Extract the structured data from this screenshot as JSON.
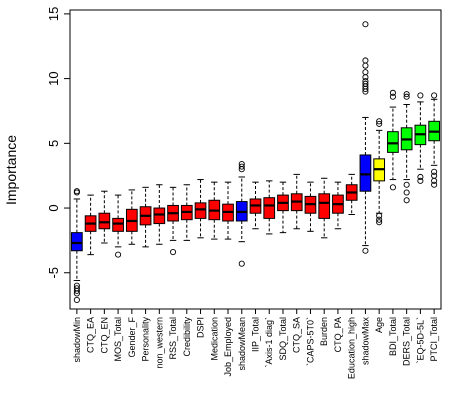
{
  "chart_data": {
    "type": "boxplot",
    "title": "",
    "xlabel": "",
    "ylabel": "Importance",
    "ylim": [
      -7.8,
      15.3
    ],
    "yticks": [
      -5,
      0,
      5,
      10,
      15
    ],
    "grid": false,
    "legend": "none",
    "colors": {
      "shadow": "#0000ff",
      "rejected": "#ff0000",
      "tentative": "#ffff00",
      "confirmed": "#00ff00",
      "axis": "#000000"
    },
    "variables": [
      {
        "label": "shadowMin",
        "group": "shadow",
        "whisker_low": -5.6,
        "q1": -3.3,
        "median": -2.7,
        "q3": -1.9,
        "whisker_high": 0.7,
        "outliers": [
          1.2,
          1.3,
          -6.0,
          -6.2,
          -6.4,
          -6.6,
          -7.1
        ]
      },
      {
        "label": "CTQ_EA",
        "group": "rejected",
        "whisker_low": -3.6,
        "q1": -1.8,
        "median": -1.2,
        "q3": -0.6,
        "whisker_high": 1.0,
        "outliers": []
      },
      {
        "label": "CTQ_EN",
        "group": "rejected",
        "whisker_low": -2.7,
        "q1": -1.6,
        "median": -1.1,
        "q3": -0.4,
        "whisker_high": 1.3,
        "outliers": []
      },
      {
        "label": "MOS_Total",
        "group": "rejected",
        "whisker_low": -3.0,
        "q1": -1.8,
        "median": -1.2,
        "q3": -0.8,
        "whisker_high": 1.0,
        "outliers": [
          -3.6
        ]
      },
      {
        "label": "Gender_F",
        "group": "rejected",
        "whisker_low": -2.8,
        "q1": -1.8,
        "median": -1.0,
        "q3": -0.1,
        "whisker_high": 1.4,
        "outliers": []
      },
      {
        "label": "Personality",
        "group": "rejected",
        "whisker_low": -3.0,
        "q1": -1.3,
        "median": -0.6,
        "q3": 0.1,
        "whisker_high": 1.6,
        "outliers": []
      },
      {
        "label": "non_western",
        "group": "rejected",
        "whisker_low": -2.8,
        "q1": -1.2,
        "median": -0.5,
        "q3": 0.0,
        "whisker_high": 1.8,
        "outliers": []
      },
      {
        "label": "RSS_Total",
        "group": "rejected",
        "whisker_low": -2.5,
        "q1": -1.0,
        "median": -0.4,
        "q3": 0.2,
        "whisker_high": 1.6,
        "outliers": [
          -3.4
        ]
      },
      {
        "label": "Credibility",
        "group": "rejected",
        "whisker_low": -2.5,
        "q1": -0.9,
        "median": -0.3,
        "q3": 0.2,
        "whisker_high": 1.8,
        "outliers": []
      },
      {
        "label": "DSPI",
        "group": "rejected",
        "whisker_low": -2.3,
        "q1": -0.8,
        "median": -0.1,
        "q3": 0.4,
        "whisker_high": 2.2,
        "outliers": []
      },
      {
        "label": "Medication",
        "group": "rejected",
        "whisker_low": -2.4,
        "q1": -0.9,
        "median": -0.2,
        "q3": 0.6,
        "whisker_high": 2.0,
        "outliers": []
      },
      {
        "label": "Job_Employed",
        "group": "rejected",
        "whisker_low": -2.4,
        "q1": -1.0,
        "median": -0.3,
        "q3": 0.3,
        "whisker_high": 2.0,
        "outliers": []
      },
      {
        "label": "shadowMean",
        "group": "shadow",
        "whisker_low": -2.6,
        "q1": -1.0,
        "median": -0.3,
        "q3": 0.5,
        "whisker_high": 2.4,
        "outliers": [
          3.0,
          3.2,
          3.4,
          -4.3
        ]
      },
      {
        "label": "IIP_Total",
        "group": "rejected",
        "whisker_low": -1.6,
        "q1": -0.4,
        "median": 0.2,
        "q3": 0.7,
        "whisker_high": 2.0,
        "outliers": []
      },
      {
        "label": "`Axis-1 diag`",
        "group": "rejected",
        "whisker_low": -2.0,
        "q1": -0.8,
        "median": 0.2,
        "q3": 0.8,
        "whisker_high": 2.1,
        "outliers": []
      },
      {
        "label": "SDQ_Total",
        "group": "rejected",
        "whisker_low": -1.9,
        "q1": -0.2,
        "median": 0.4,
        "q3": 1.0,
        "whisker_high": 2.0,
        "outliers": []
      },
      {
        "label": "CTQ_SA",
        "group": "rejected",
        "whisker_low": -1.6,
        "q1": -0.2,
        "median": 0.5,
        "q3": 1.1,
        "whisker_high": 2.6,
        "outliers": []
      },
      {
        "label": "`CAPS-5T0`",
        "group": "rejected",
        "whisker_low": -1.8,
        "q1": -0.4,
        "median": 0.3,
        "q3": 0.9,
        "whisker_high": 2.0,
        "outliers": []
      },
      {
        "label": "Burden",
        "group": "rejected",
        "whisker_low": -2.3,
        "q1": -0.8,
        "median": 0.4,
        "q3": 1.1,
        "whisker_high": 2.3,
        "outliers": []
      },
      {
        "label": "CTQ_PA",
        "group": "rejected",
        "whisker_low": -1.6,
        "q1": -0.4,
        "median": 0.3,
        "q3": 1.0,
        "whisker_high": 2.0,
        "outliers": []
      },
      {
        "label": "Education_high",
        "group": "rejected",
        "whisker_low": -0.5,
        "q1": 0.6,
        "median": 1.2,
        "q3": 1.8,
        "whisker_high": 2.6,
        "outliers": []
      },
      {
        "label": "shadowMax",
        "group": "shadow",
        "whisker_low": -2.9,
        "q1": 1.3,
        "median": 2.6,
        "q3": 4.1,
        "whisker_high": 7.0,
        "outliers": [
          9.0,
          9.2,
          9.4,
          9.6,
          9.8,
          10.1,
          10.5,
          11.0,
          11.4,
          14.2,
          -3.3
        ]
      },
      {
        "label": "Age",
        "group": "tentative",
        "whisker_low": -0.4,
        "q1": 2.1,
        "median": 3.0,
        "q3": 3.8,
        "whisker_high": 6.0,
        "outliers": [
          6.5,
          6.7,
          -0.6,
          -0.9,
          -1.1
        ]
      },
      {
        "label": "BDI_Total",
        "group": "confirmed",
        "whisker_low": 2.2,
        "q1": 4.3,
        "median": 5.0,
        "q3": 5.9,
        "whisker_high": 7.8,
        "outliers": [
          8.6,
          8.9,
          1.6
        ]
      },
      {
        "label": "DERS_Total",
        "group": "confirmed",
        "whisker_low": 2.2,
        "q1": 4.5,
        "median": 5.3,
        "q3": 6.2,
        "whisker_high": 8.0,
        "outliers": [
          8.6,
          8.8,
          1.8,
          1.2,
          0.6
        ]
      },
      {
        "label": "`EQ-5D-5L`",
        "group": "confirmed",
        "whisker_low": 3.0,
        "q1": 4.9,
        "median": 5.7,
        "q3": 6.4,
        "whisker_high": 8.2,
        "outliers": [
          8.7,
          2.4,
          2.1
        ]
      },
      {
        "label": "PTCI_Total",
        "group": "confirmed",
        "whisker_low": 3.3,
        "q1": 5.2,
        "median": 5.9,
        "q3": 6.7,
        "whisker_high": 8.4,
        "outliers": [
          8.7,
          2.8,
          2.5,
          2.1,
          1.8
        ]
      }
    ]
  }
}
